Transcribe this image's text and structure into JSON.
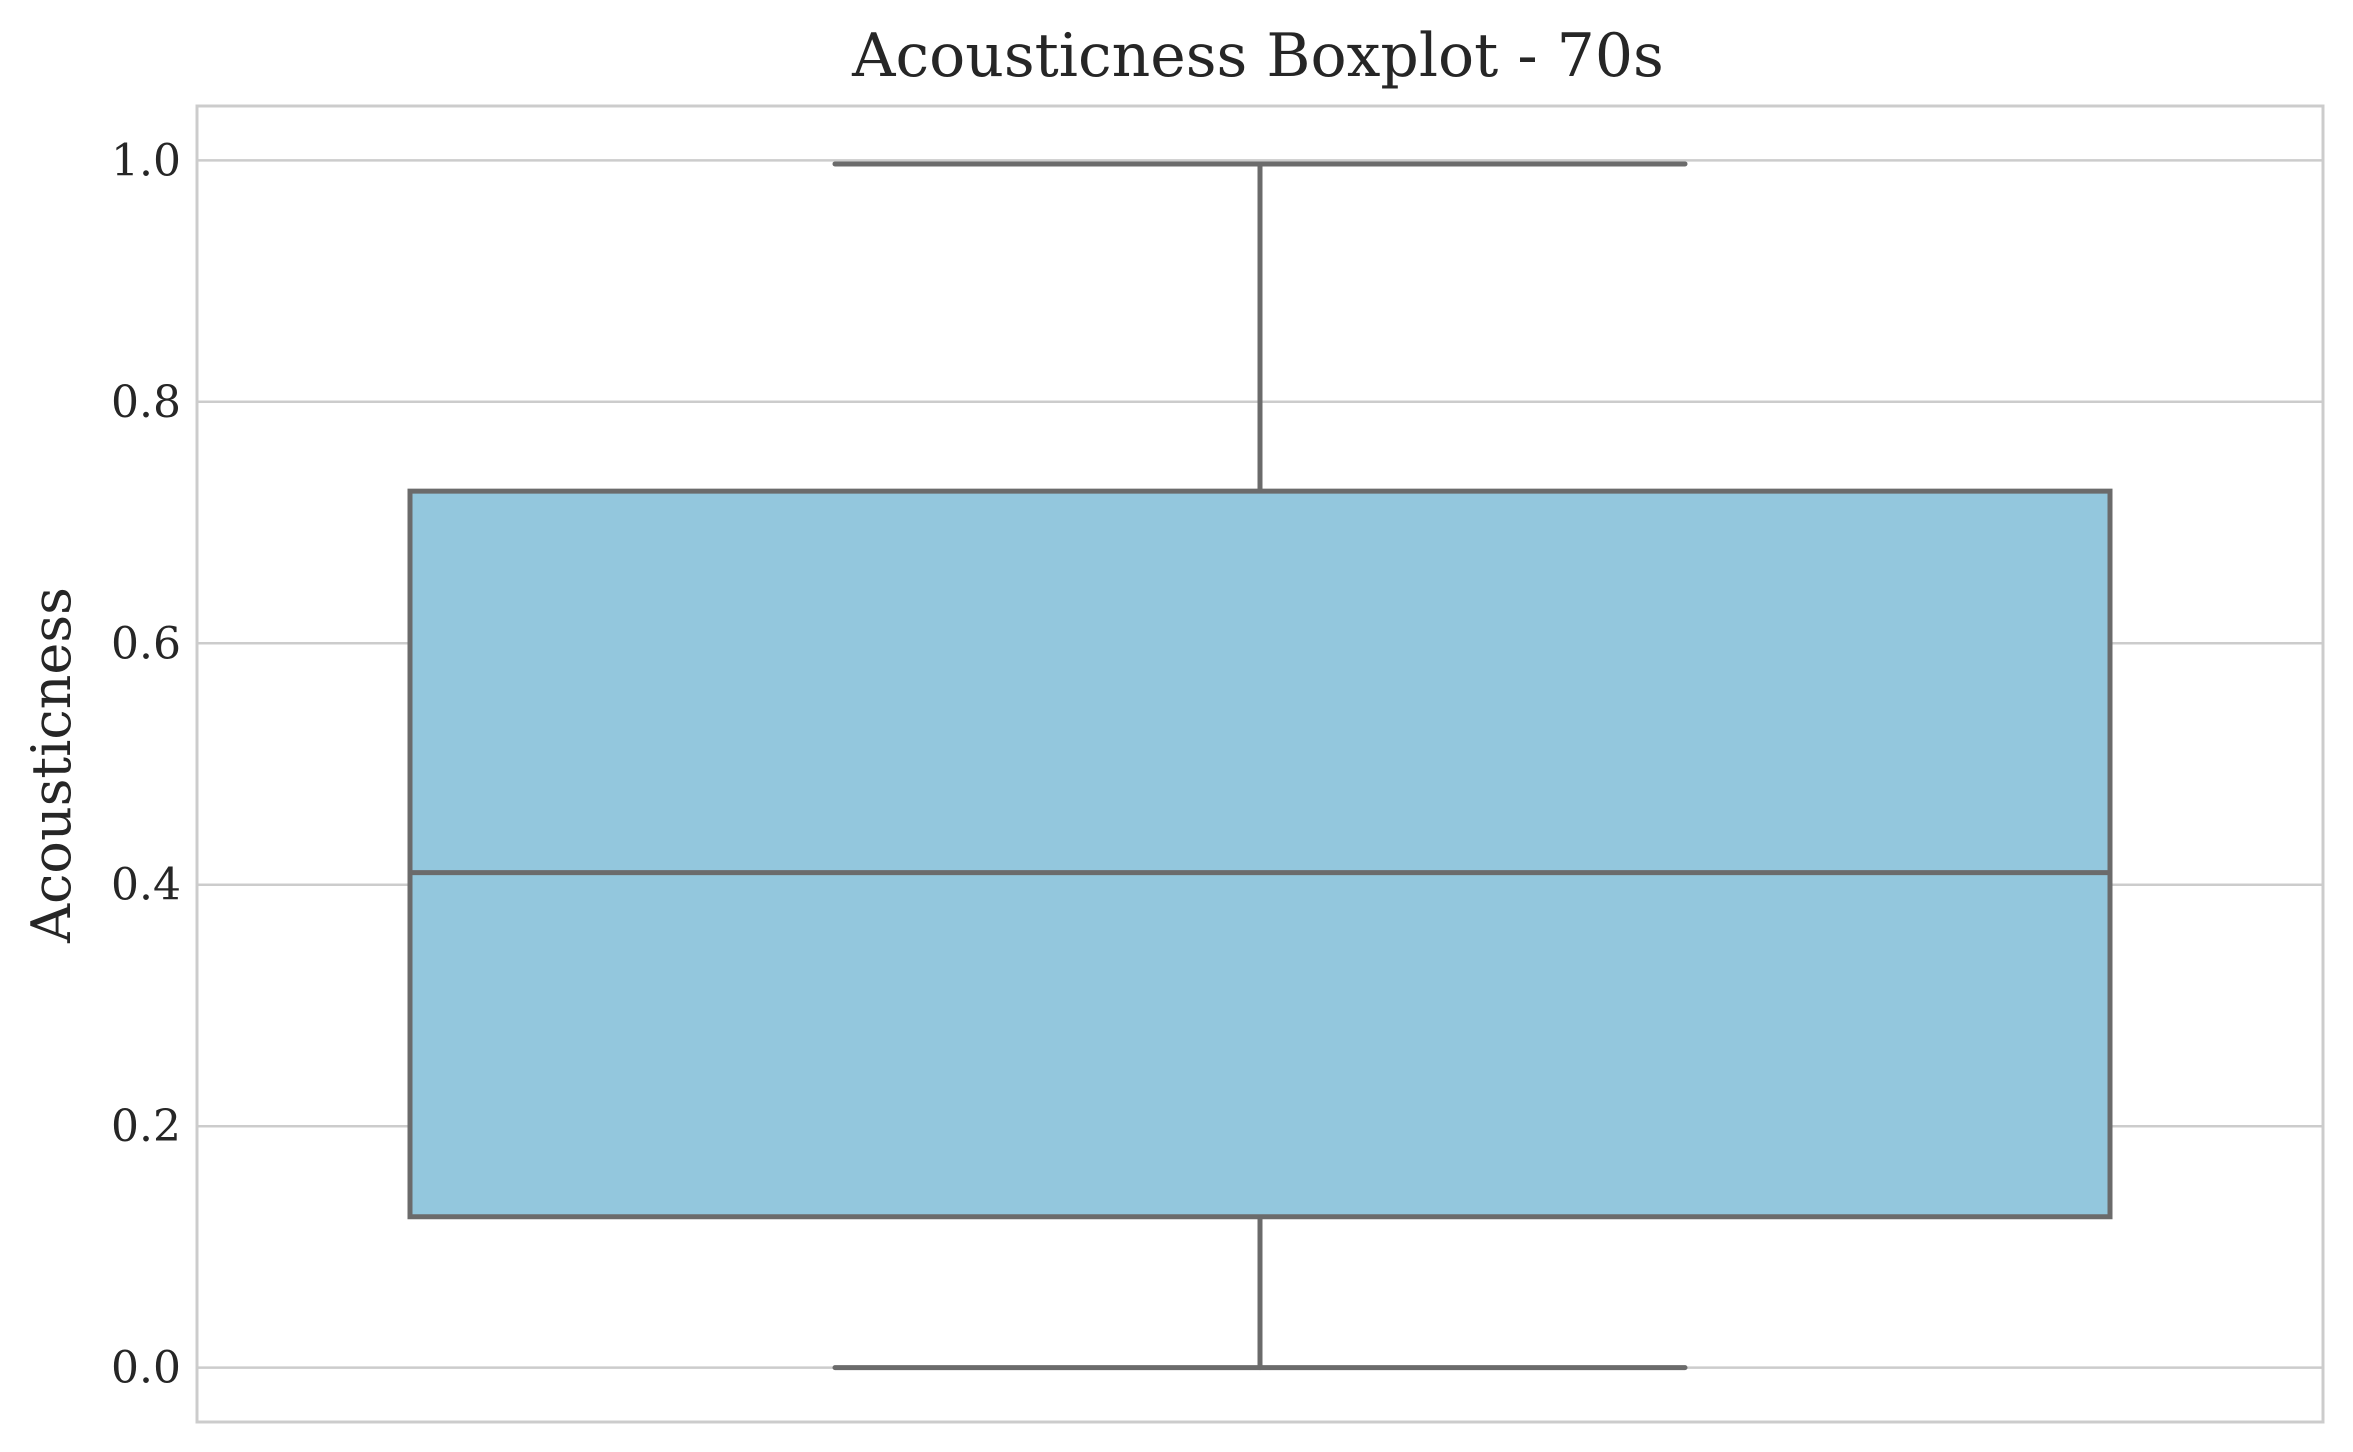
{
  "chart_data": {
    "type": "box",
    "title": "Acousticness Boxplot - 70s",
    "xlabel": "",
    "ylabel": "Acousticness",
    "ylim": [
      -0.045,
      1.045
    ],
    "yticks": [
      0.0,
      0.2,
      0.4,
      0.6,
      0.8,
      1.0
    ],
    "ytick_labels": [
      "0.0",
      "0.2",
      "0.4",
      "0.6",
      "0.8",
      "1.0"
    ],
    "grid": "y",
    "legend": "none",
    "series": [
      {
        "whisker_low": 0.0,
        "q1": 0.125,
        "median": 0.41,
        "q3": 0.726,
        "whisker_high": 0.997
      }
    ],
    "colors": {
      "box_fill": "#93c7dd",
      "box_edge": "#6b6b6b",
      "grid": "#cccccc",
      "frame": "#cccccc",
      "text": "#262626"
    }
  }
}
